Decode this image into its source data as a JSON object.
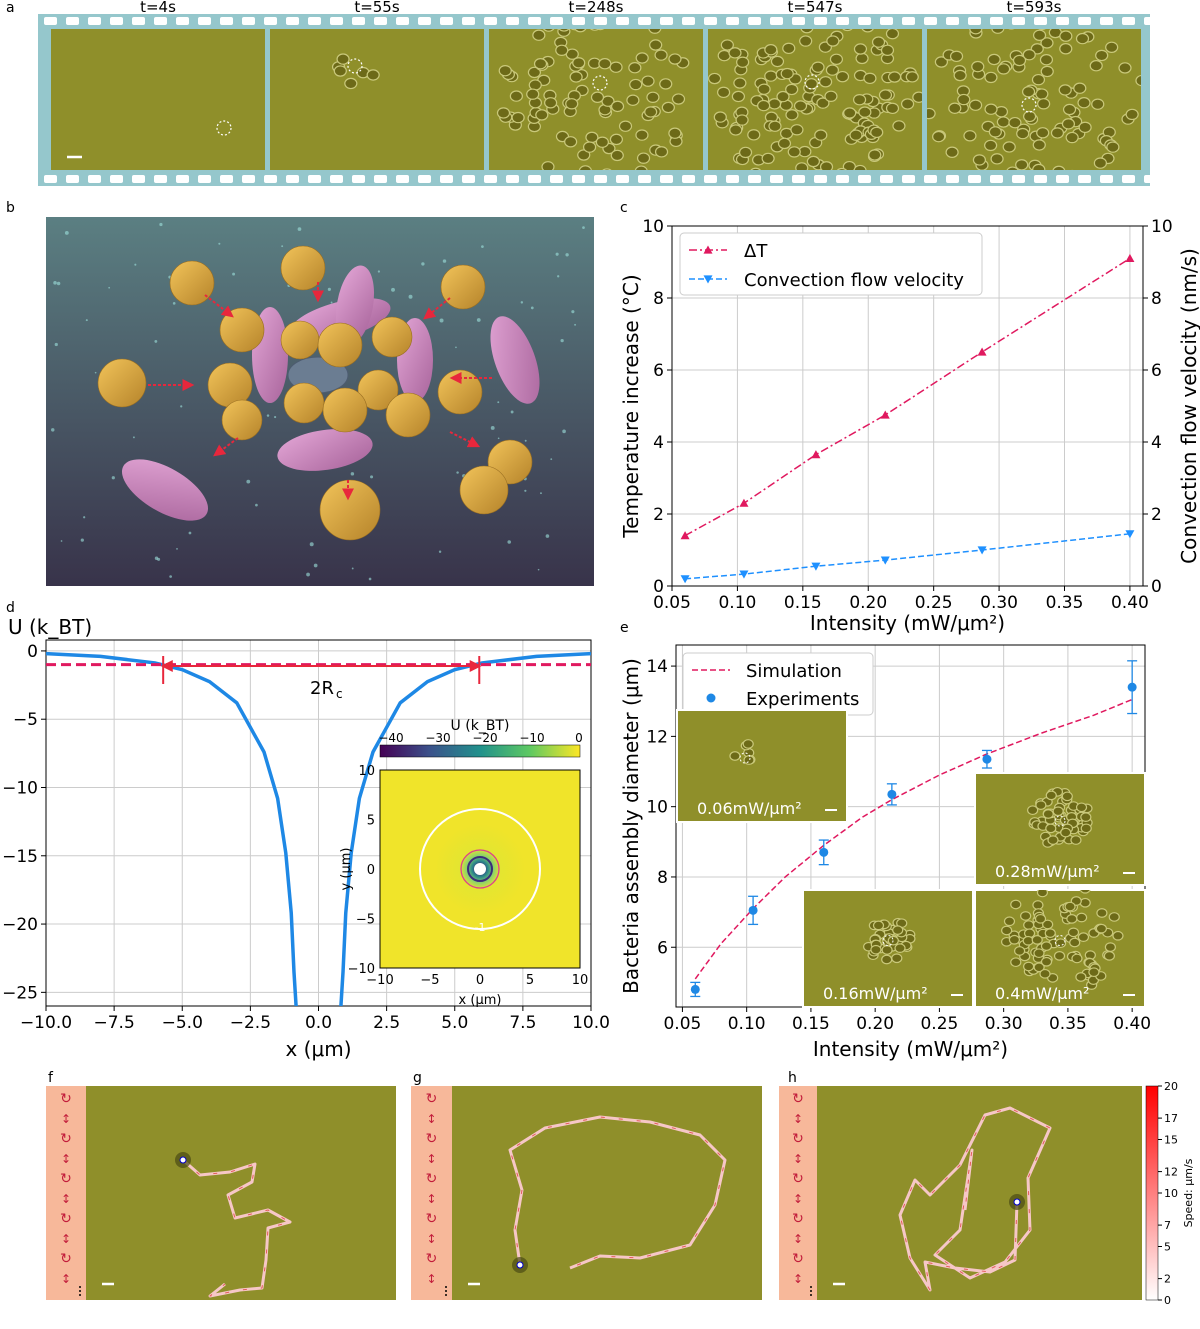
{
  "panels": {
    "a": {
      "letter": "a",
      "frames": [
        {
          "time": "t=4s",
          "cells": 0
        },
        {
          "time": "t=55s",
          "cells": 6
        },
        {
          "time": "t=248s",
          "cells": 95
        },
        {
          "time": "t=547s",
          "cells": 150
        },
        {
          "time": "t=593s",
          "cells": 120
        }
      ]
    },
    "b": {
      "letter": "b"
    },
    "c": {
      "letter": "c"
    },
    "d": {
      "letter": "d",
      "annotation": "2R",
      "annotation_sub": "c"
    },
    "e": {
      "letter": "e"
    },
    "f": {
      "letter": "f"
    },
    "g": {
      "letter": "g"
    },
    "h": {
      "letter": "h"
    }
  },
  "colors": {
    "microscope_bg": "#8f8f2a",
    "film_border": "#95c7cc",
    "delta_t": "#e0195f",
    "flow": "#1e90ff",
    "potential": "#1e88e5",
    "threshold": "#e0195f",
    "salmon": "#f7b89a"
  },
  "chart_data": [
    {
      "id": "c",
      "type": "line",
      "xlabel": "Intensity (mW/μm²)",
      "ylabel_left": "Temperature increase (°C)",
      "ylabel_right": "Convection flow velocity (nm/s)",
      "xlim": [
        0.05,
        0.41
      ],
      "ylim_left": [
        0,
        10
      ],
      "ylim_right": [
        0,
        10
      ],
      "xticks": [
        "0.05",
        "0.10",
        "0.15",
        "0.20",
        "0.25",
        "0.30",
        "0.35",
        "0.40"
      ],
      "yticks": [
        "0",
        "2",
        "4",
        "6",
        "8",
        "10"
      ],
      "grid": true,
      "legend_position": "top-left",
      "series": [
        {
          "name": "ΔT",
          "axis": "left",
          "marker": "triangle-up",
          "style": "dash-dot",
          "x": [
            0.06,
            0.105,
            0.16,
            0.213,
            0.287,
            0.4
          ],
          "y": [
            1.4,
            2.3,
            3.65,
            4.75,
            6.5,
            9.1
          ]
        },
        {
          "name": "Convection flow velocity",
          "axis": "right",
          "marker": "triangle-down",
          "style": "dashed",
          "x": [
            0.06,
            0.105,
            0.16,
            0.213,
            0.287,
            0.4
          ],
          "y": [
            0.2,
            0.33,
            0.55,
            0.72,
            1.0,
            1.45
          ]
        }
      ]
    },
    {
      "id": "d",
      "type": "line",
      "title": "U (k_BT)",
      "xlabel": "x (μm)",
      "xlim": [
        -10,
        10
      ],
      "ylim": [
        -26,
        0.8
      ],
      "xticks": [
        "−10.0",
        "−7.5",
        "−5.0",
        "−2.5",
        "0.0",
        "2.5",
        "5.0",
        "7.5",
        "10.0"
      ],
      "yticks": [
        "0",
        "−5",
        "−10",
        "−15",
        "−20",
        "−25"
      ],
      "grid": true,
      "series": [
        {
          "name": "U",
          "x": [
            -10,
            -8,
            -6,
            -5,
            -4,
            -3,
            -2,
            -1.5,
            -1.2,
            -1.0,
            -0.9,
            0.9,
            1.0,
            1.2,
            1.5,
            2,
            3,
            4,
            5,
            6,
            8,
            10
          ],
          "y": [
            -0.2,
            -0.4,
            -0.88,
            -1.37,
            -2.25,
            -3.8,
            -7.4,
            -10.8,
            -14.8,
            -19.2,
            -23.5,
            -23.5,
            -19.2,
            -14.8,
            -10.8,
            -7.4,
            -3.8,
            -2.25,
            -1.37,
            -0.88,
            -0.4,
            -0.2
          ]
        },
        {
          "name": "threshold",
          "x": [
            -10,
            10
          ],
          "y": [
            -1,
            -1
          ]
        }
      ],
      "inset": {
        "type": "heatmap",
        "colorbar_label": "U (k_BT)",
        "colorbar_ticks": [
          "−40",
          "−30",
          "−20",
          "−10",
          "0"
        ],
        "xlabel": "x (μm)",
        "ylabel": "y (μm)",
        "xticks": [
          "−10",
          "−5",
          "0",
          "5",
          "10"
        ],
        "yticks": [
          "10",
          "5",
          "0",
          "−5",
          "−10"
        ],
        "contour_label": "-1"
      }
    },
    {
      "id": "e",
      "type": "line",
      "xlabel": "Intensity (mW/μm²)",
      "ylabel": "Bacteria assembly diameter (μm)",
      "xlim": [
        0.045,
        0.41
      ],
      "ylim": [
        4.3,
        14.6
      ],
      "xticks": [
        "0.05",
        "0.10",
        "0.15",
        "0.20",
        "0.25",
        "0.30",
        "0.35",
        "0.40"
      ],
      "yticks": [
        "6",
        "8",
        "10",
        "12",
        "14"
      ],
      "grid": true,
      "legend_position": "top-left",
      "series": [
        {
          "name": "Simulation",
          "style": "dashed",
          "x": [
            0.06,
            0.08,
            0.105,
            0.13,
            0.16,
            0.19,
            0.213,
            0.25,
            0.287,
            0.33,
            0.37,
            0.4
          ],
          "y": [
            5.1,
            6.1,
            7.1,
            8.0,
            8.9,
            9.7,
            10.2,
            10.9,
            11.5,
            12.1,
            12.6,
            13.05
          ]
        },
        {
          "name": "Experiments",
          "marker": "circle",
          "x": [
            0.06,
            0.105,
            0.16,
            0.213,
            0.287,
            0.4
          ],
          "y": [
            4.8,
            7.05,
            8.7,
            10.35,
            11.35,
            13.4
          ],
          "err": [
            0.2,
            0.4,
            0.35,
            0.3,
            0.25,
            0.75
          ]
        }
      ],
      "insets": [
        {
          "label": "0.06mW/μm²",
          "cells": 6
        },
        {
          "label": "0.28mW/μm²",
          "cells": 60
        },
        {
          "label": "0.16mW/μm²",
          "cells": 40
        },
        {
          "label": "0.4mW/μm²",
          "cells": 90
        }
      ]
    },
    {
      "id": "fgh",
      "type": "trajectory",
      "colorbar_label": "Speed: μm/s",
      "colorbar_ticks": [
        "0",
        "2",
        "5",
        "7",
        "10",
        "12",
        "15",
        "17",
        "20"
      ],
      "colorbar_range": [
        0,
        20
      ]
    }
  ]
}
